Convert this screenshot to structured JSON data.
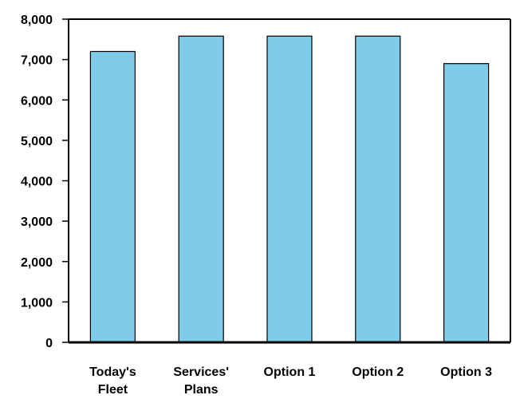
{
  "chart_data": {
    "type": "bar",
    "categories": [
      [
        "Today's",
        "Fleet"
      ],
      [
        "Services'",
        "Plans"
      ],
      [
        "Option 1"
      ],
      [
        "Option 2"
      ],
      [
        "Option 3"
      ]
    ],
    "values": [
      7200,
      7580,
      7580,
      7580,
      6900
    ],
    "ylim": [
      0,
      8000
    ],
    "yticks": [
      0,
      1000,
      2000,
      3000,
      4000,
      5000,
      6000,
      7000,
      8000
    ],
    "ytick_labels": [
      "0",
      "1,000",
      "2,000",
      "3,000",
      "4,000",
      "5,000",
      "6,000",
      "7,000",
      "8,000"
    ],
    "title": "",
    "xlabel": "",
    "ylabel": "",
    "grid": false,
    "legend": "none",
    "bar_color": "#7ecbea",
    "bar_edge_color": "#000000"
  }
}
